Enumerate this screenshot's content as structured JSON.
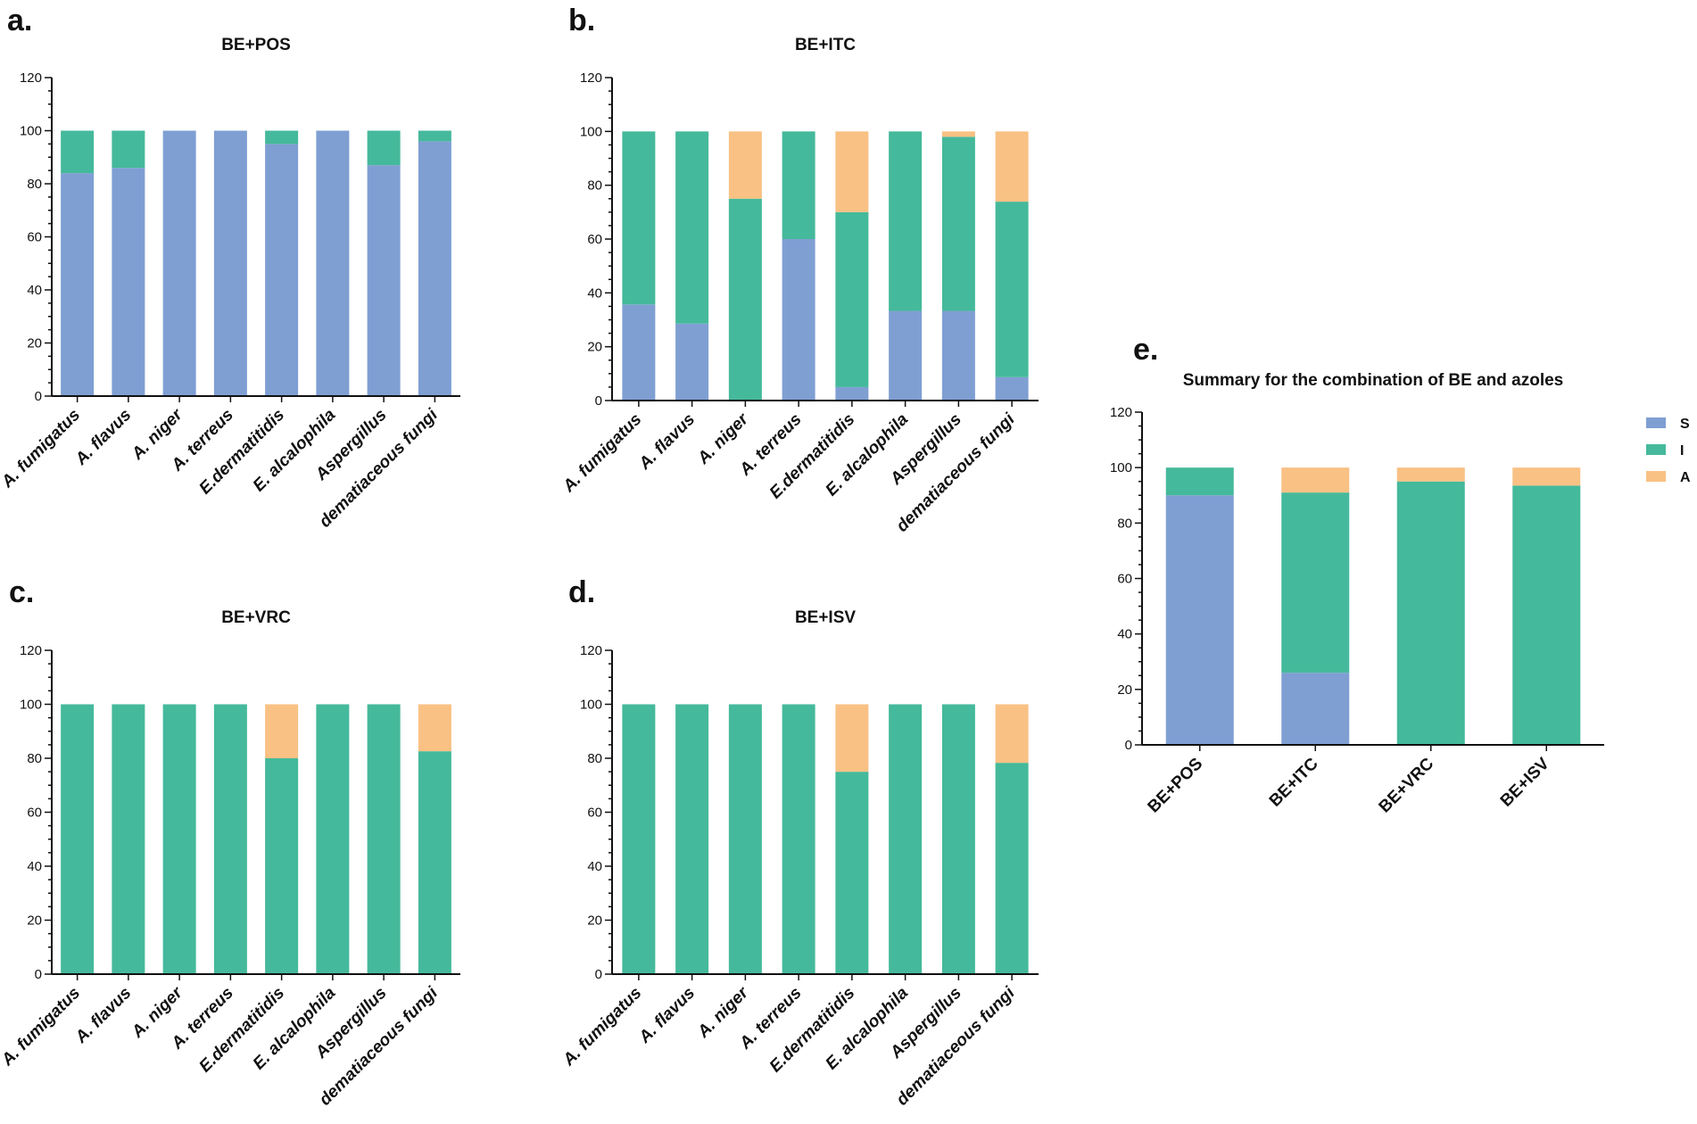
{
  "colors": {
    "S": "#7f9fd3",
    "I": "#45b99b",
    "A": "#f9c184"
  },
  "legend": {
    "items": [
      {
        "key": "S",
        "label": "S"
      },
      {
        "key": "I",
        "label": "I"
      },
      {
        "key": "A",
        "label": "A"
      }
    ]
  },
  "chart_data": [
    {
      "id": "a",
      "panel": "a.",
      "type": "bar",
      "stacked": true,
      "title": "BE+POS",
      "xlabel": "",
      "ylabel": "",
      "ylim": [
        0,
        120
      ],
      "yticks": [
        "0",
        "20",
        "40",
        "60",
        "80",
        "100",
        "120"
      ],
      "italic_categories": true,
      "categories": [
        "A. fumigatus",
        "A. flavus",
        "A. niger",
        "A. terreus",
        "E.dermatitidis",
        "E. alcalophila",
        "Aspergillus",
        "dematiaceous fungi"
      ],
      "series": [
        {
          "name": "S",
          "values": [
            84,
            86,
            100,
            100,
            95,
            100,
            87,
            96
          ]
        },
        {
          "name": "I",
          "values": [
            16,
            14,
            0,
            0,
            5,
            0,
            13,
            4
          ]
        },
        {
          "name": "A",
          "values": [
            0,
            0,
            0,
            0,
            0,
            0,
            0,
            0
          ]
        }
      ]
    },
    {
      "id": "b",
      "panel": "b.",
      "type": "bar",
      "stacked": true,
      "title": "BE+ITC",
      "xlabel": "",
      "ylabel": "",
      "ylim": [
        0,
        120
      ],
      "yticks": [
        "0",
        "20",
        "40",
        "60",
        "80",
        "100",
        "120"
      ],
      "italic_categories": true,
      "categories": [
        "A. fumigatus",
        "A. flavus",
        "A. niger",
        "A. terreus",
        "E.dermatitidis",
        "E. alcalophila",
        "Aspergillus",
        "dematiaceous fungi"
      ],
      "series": [
        {
          "name": "S",
          "values": [
            35.7,
            28.6,
            0,
            60,
            5,
            33.3,
            33.3,
            8.7
          ]
        },
        {
          "name": "I",
          "values": [
            64.3,
            71.4,
            75,
            40,
            65,
            66.7,
            64.7,
            65.2
          ]
        },
        {
          "name": "A",
          "values": [
            0,
            0,
            25,
            0,
            30,
            0,
            2,
            26.1
          ]
        }
      ]
    },
    {
      "id": "c",
      "panel": "c.",
      "type": "bar",
      "stacked": true,
      "title": "BE+VRC",
      "xlabel": "",
      "ylabel": "",
      "ylim": [
        0,
        120
      ],
      "yticks": [
        "0",
        "20",
        "40",
        "60",
        "80",
        "100",
        "120"
      ],
      "italic_categories": true,
      "categories": [
        "A. fumigatus",
        "A. flavus",
        "A. niger",
        "A. terreus",
        "E.dermatitidis",
        "E. alcalophila",
        "Aspergillus",
        "dematiaceous fungi"
      ],
      "series": [
        {
          "name": "S",
          "values": [
            0,
            0,
            0,
            0,
            0,
            0,
            0,
            0
          ]
        },
        {
          "name": "I",
          "values": [
            100,
            100,
            100,
            100,
            80,
            100,
            100,
            82.6
          ]
        },
        {
          "name": "A",
          "values": [
            0,
            0,
            0,
            0,
            20,
            0,
            0,
            17.4
          ]
        }
      ]
    },
    {
      "id": "d",
      "panel": "d.",
      "type": "bar",
      "stacked": true,
      "title": "BE+ISV",
      "xlabel": "",
      "ylabel": "",
      "ylim": [
        0,
        120
      ],
      "yticks": [
        "0",
        "20",
        "40",
        "60",
        "80",
        "100",
        "120"
      ],
      "italic_categories": true,
      "categories": [
        "A. fumigatus",
        "A. flavus",
        "A. niger",
        "A. terreus",
        "E.dermatitidis",
        "E. alcalophila",
        "Aspergillus",
        "dematiaceous fungi"
      ],
      "series": [
        {
          "name": "S",
          "values": [
            0,
            0,
            0,
            0,
            0,
            0,
            0,
            0
          ]
        },
        {
          "name": "I",
          "values": [
            100,
            100,
            100,
            100,
            75,
            100,
            100,
            78.3
          ]
        },
        {
          "name": "A",
          "values": [
            0,
            0,
            0,
            0,
            25,
            0,
            0,
            21.7
          ]
        }
      ]
    },
    {
      "id": "e",
      "panel": "e.",
      "type": "bar",
      "stacked": true,
      "title": "Summary for the combination of BE and azoles",
      "xlabel": "",
      "ylabel": "",
      "ylim": [
        0,
        120
      ],
      "yticks": [
        "0",
        "20",
        "40",
        "60",
        "80",
        "100",
        "120"
      ],
      "italic_categories": false,
      "categories": [
        "BE+POS",
        "BE+ITC",
        "BE+VRC",
        "BE+ISV"
      ],
      "series": [
        {
          "name": "S",
          "values": [
            90,
            26,
            0,
            0
          ]
        },
        {
          "name": "I",
          "values": [
            10,
            65,
            95,
            93.5
          ]
        },
        {
          "name": "A",
          "values": [
            0,
            9,
            5,
            6.5
          ]
        }
      ],
      "legend_position": "right"
    }
  ]
}
